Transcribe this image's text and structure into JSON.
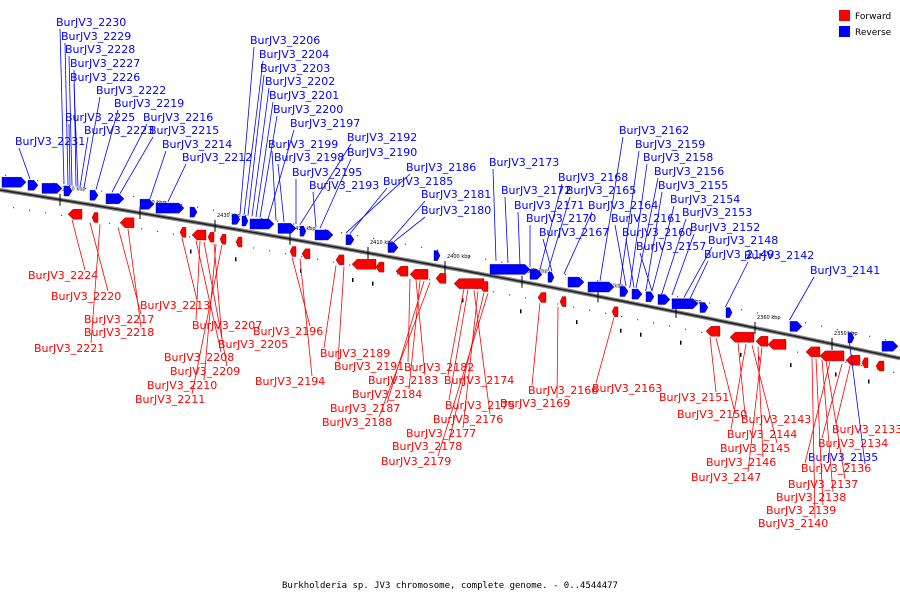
{
  "legend": {
    "forward_label": "Forward",
    "reverse_label": "Reverse",
    "forward_color": "#ff0000",
    "reverse_color": "#0000ff"
  },
  "caption": "Burkholderia sp. JV3 chromosome, complete genome. - 0..4544477",
  "axis_ticks": [
    "2450 kbp",
    "2440 kbp",
    "2430 kbp",
    "2420 kbp",
    "2410 kbp",
    "2400 kbp",
    "2390 kbp",
    "2380 kbp",
    "2370 kbp",
    "2360 kbp",
    "2350 kbp"
  ],
  "reverse_genes": [
    "BurJV3_2230",
    "BurJV3_2229",
    "BurJV3_2228",
    "BurJV3_2227",
    "BurJV3_2226",
    "BurJV3_2222",
    "BurJV3_2219",
    "BurJV3_2225",
    "BurJV3_2223",
    "BurJV3_2216",
    "BurJV3_2215",
    "BurJV3_2231",
    "BurJV3_2214",
    "BurJV3_2212",
    "BurJV3_2206",
    "BurJV3_2204",
    "BurJV3_2203",
    "BurJV3_2202",
    "BurJV3_2201",
    "BurJV3_2200",
    "BurJV3_2197",
    "BurJV3_2192",
    "BurJV3_2199",
    "BurJV3_2190",
    "BurJV3_2198",
    "BurJV3_2186",
    "BurJV3_2195",
    "BurJV3_2193",
    "BurJV3_2185",
    "BurJV3_2181",
    "BurJV3_2180",
    "BurJV3_2173",
    "BurJV3_2168",
    "BurJV3_2172",
    "BurJV3_2165",
    "BurJV3_2171",
    "BurJV3_2164",
    "BurJV3_2170",
    "BurJV3_2167",
    "BurJV3_2162",
    "BurJV3_2159",
    "BurJV3_2158",
    "BurJV3_2156",
    "BurJV3_2155",
    "BurJV3_2154",
    "BurJV3_2161",
    "BurJV3_2153",
    "BurJV3_2160",
    "BurJV3_2152",
    "BurJV3_2157",
    "BurJV3_2148",
    "BurJV3_2149",
    "BurJV3_2142",
    "BurJV3_2141",
    "BurJV3_2135"
  ],
  "forward_genes": [
    "BurJV3_2224",
    "BurJV3_2220",
    "BurJV3_2217",
    "BurJV3_2218",
    "BurJV3_2221",
    "BurJV3_2213",
    "BurJV3_2207",
    "BurJV3_2205",
    "BurJV3_2208",
    "BurJV3_2209",
    "BurJV3_2210",
    "BurJV3_2211",
    "BurJV3_2196",
    "BurJV3_2194",
    "BurJV3_2189",
    "BurJV3_2191",
    "BurJV3_2182",
    "BurJV3_2183",
    "BurJV3_2184",
    "BurJV3_2187",
    "BurJV3_2188",
    "BurJV3_2174",
    "BurJV3_2175",
    "BurJV3_2176",
    "BurJV3_2177",
    "BurJV3_2178",
    "BurJV3_2179",
    "BurJV3_2166",
    "BurJV3_2169",
    "BurJV3_2163",
    "BurJV3_2151",
    "BurJV3_2150",
    "BurJV3_2143",
    "BurJV3_2144",
    "BurJV3_2145",
    "BurJV3_2146",
    "BurJV3_2147",
    "BurJV3_2133",
    "BurJV3_2134",
    "BurJV3_2136",
    "BurJV3_2137",
    "BurJV3_2138",
    "BurJV3_2139",
    "BurJV3_2140"
  ]
}
